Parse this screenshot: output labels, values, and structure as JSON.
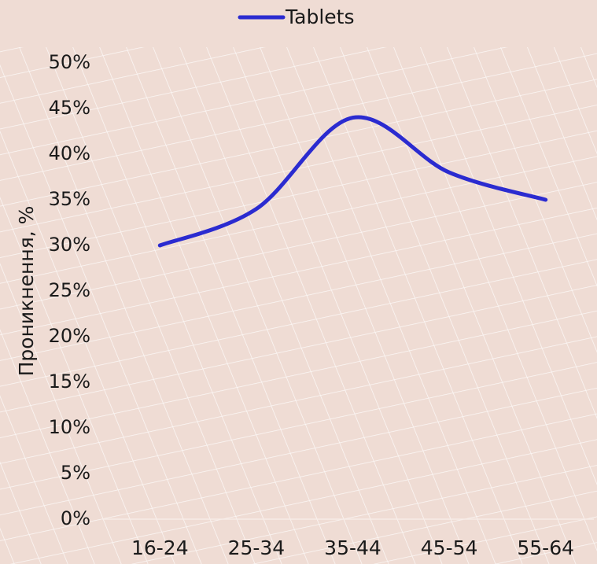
{
  "chart_data": {
    "type": "line",
    "categories": [
      "16-24",
      "25-34",
      "35-44",
      "45-54",
      "55-64"
    ],
    "series": [
      {
        "name": "Tablets",
        "color": "#2b2bd0",
        "values": [
          30,
          34,
          44,
          38,
          35
        ]
      }
    ],
    "ylabel": "Проникнення, %",
    "ylim": [
      0,
      50
    ],
    "yticks": [
      {
        "value": 0,
        "label": "0%"
      },
      {
        "value": 5,
        "label": "5%"
      },
      {
        "value": 10,
        "label": "10%"
      },
      {
        "value": 15,
        "label": "15%"
      },
      {
        "value": 20,
        "label": "20%"
      },
      {
        "value": 25,
        "label": "25%"
      },
      {
        "value": 30,
        "label": "30%"
      },
      {
        "value": 35,
        "label": "35%"
      },
      {
        "value": 40,
        "label": "40%"
      },
      {
        "value": 45,
        "label": "45%"
      },
      {
        "value": 50,
        "label": "50%"
      }
    ],
    "legend": "top"
  }
}
